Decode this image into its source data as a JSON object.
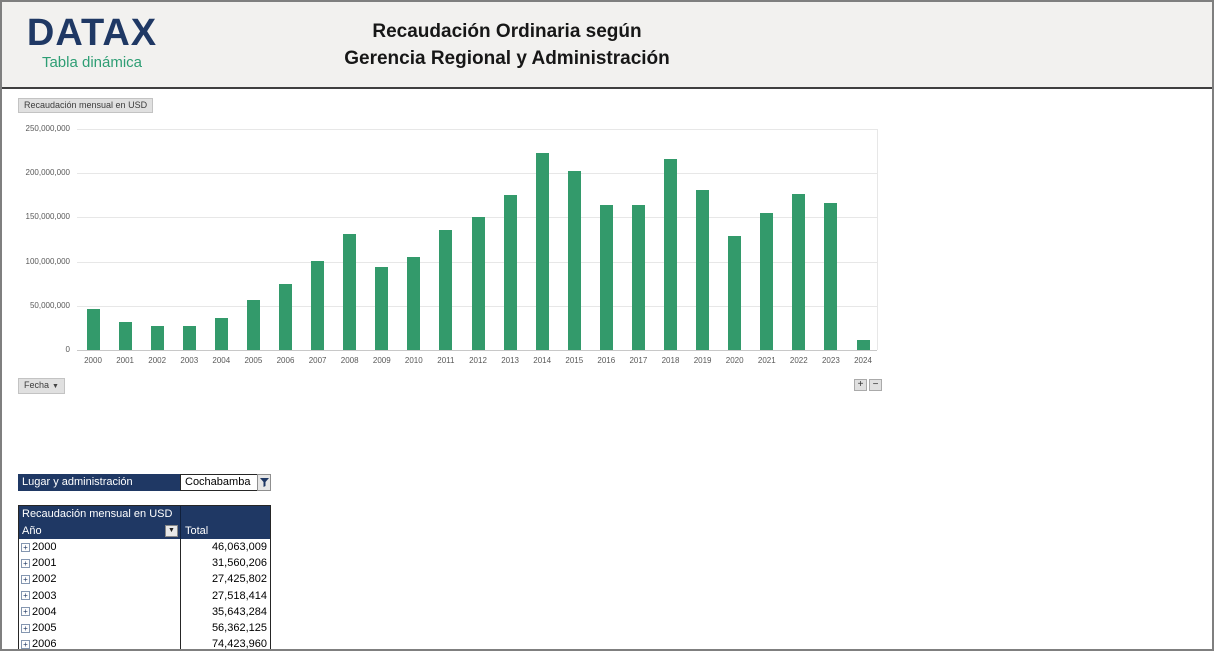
{
  "header": {
    "logo_title": "DATAX",
    "logo_subtitle": "Tabla dinámica",
    "title_line1": "Recaudación Ordinaria según",
    "title_line2": "Gerencia Regional y Administración"
  },
  "chart": {
    "field_button_label": "Recaudación mensual en USD",
    "axis_field_label": "Fecha",
    "expand_button_label": "+",
    "collapse_button_label": "−"
  },
  "chart_data": {
    "type": "bar",
    "title": "Recaudación mensual en USD",
    "xlabel": "Fecha",
    "ylabel": "",
    "categories": [
      "2000",
      "2001",
      "2002",
      "2003",
      "2004",
      "2005",
      "2006",
      "2007",
      "2008",
      "2009",
      "2010",
      "2011",
      "2012",
      "2013",
      "2014",
      "2015",
      "2016",
      "2017",
      "2018",
      "2019",
      "2020",
      "2021",
      "2022",
      "2023",
      "2024"
    ],
    "values": [
      46063009,
      31560206,
      27425802,
      27518414,
      35643284,
      56362125,
      74423960,
      101000000,
      131000000,
      94000000,
      105000000,
      136000000,
      150000000,
      175000000,
      223000000,
      203000000,
      164000000,
      164000000,
      216000000,
      181000000,
      129000000,
      155000000,
      176000000,
      166000000,
      11000000
    ],
    "ylim": [
      0,
      250000000
    ],
    "ytick_interval": 50000000,
    "ytick_labels": [
      "0",
      "50,000,000",
      "100,000,000",
      "150,000,000",
      "200,000,000",
      "250,000,000"
    ],
    "grid": true,
    "legend": false,
    "bar_color": "#339a6b"
  },
  "filter": {
    "label": "Lugar y administración",
    "value": "Cochabamba"
  },
  "pivot_table": {
    "title": "Recaudación mensual en USD",
    "year_column": "Año",
    "total_column": "Total",
    "rows": [
      {
        "year": "2000",
        "total": "46,063,009"
      },
      {
        "year": "2001",
        "total": "31,560,206"
      },
      {
        "year": "2002",
        "total": "27,425,802"
      },
      {
        "year": "2003",
        "total": "27,518,414"
      },
      {
        "year": "2004",
        "total": "35,643,284"
      },
      {
        "year": "2005",
        "total": "56,362,125"
      },
      {
        "year": "2006",
        "total": "74,423,960"
      }
    ]
  },
  "colors": {
    "navy": "#1f3864",
    "bar_green": "#339a6b",
    "logo_green": "#2e9e74",
    "header_background": "#f2f1ef",
    "gridline": "#e7e7e7",
    "axis_text": "#595959"
  }
}
